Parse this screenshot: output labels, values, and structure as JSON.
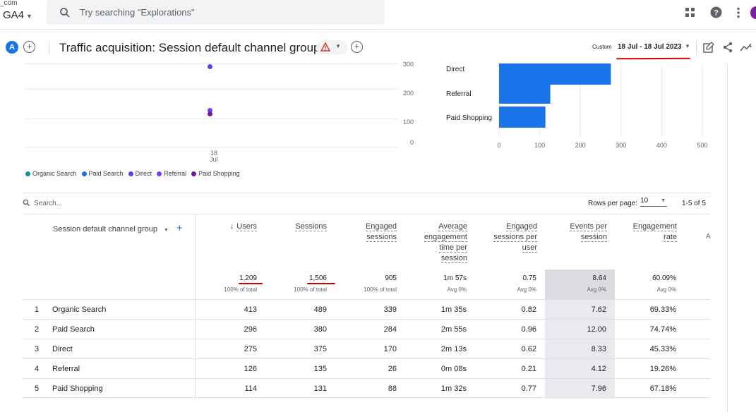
{
  "topbar": {
    "account": "_com",
    "property": "GA4",
    "search_placeholder": "Try searching \"Explorations\"",
    "icons": [
      "apps-icon",
      "help-icon",
      "more-vert-icon"
    ]
  },
  "header": {
    "badge": "A",
    "title": "Traffic acquisition: Session default channel group",
    "custom_label": "Custom",
    "date_range": "18 Jul - 18 Jul 2023"
  },
  "line_chart": {
    "y_ticks": [
      "300",
      "200",
      "100",
      "0"
    ],
    "x_tick_day": "18",
    "x_tick_month": "Jul",
    "legend": [
      {
        "name": "Organic Search",
        "color": "#12939a"
      },
      {
        "name": "Paid Search",
        "color": "#1a73e8"
      },
      {
        "name": "Direct",
        "color": "#4f46e5"
      },
      {
        "name": "Referral",
        "color": "#7c3aed"
      },
      {
        "name": "Paid Shopping",
        "color": "#6a1b9a"
      }
    ]
  },
  "chart_data": {
    "type": "bar",
    "categories": [
      "Direct",
      "Referral",
      "Paid Shopping"
    ],
    "values": [
      275,
      126,
      114
    ],
    "x_ticks": [
      "0",
      "100",
      "200",
      "300",
      "400",
      "500"
    ],
    "xlim": [
      0,
      500
    ],
    "color": "#1a73e8"
  },
  "table": {
    "search_placeholder": "Search...",
    "rows_per_page_label": "Rows per page:",
    "rows_per_page": "10",
    "pagination": "1-5 of 5",
    "dimension_header": "Session default channel group",
    "columns": [
      {
        "label": "Users",
        "total": "1,209",
        "pct": "100% of total"
      },
      {
        "label": "Sessions",
        "total": "1,506",
        "pct": "100% of total"
      },
      {
        "label": "Engaged sessions",
        "total": "905",
        "pct": "100% of total"
      },
      {
        "label": "Average engagement time per session",
        "total": "1m 57s",
        "pct": "Avg 0%"
      },
      {
        "label": "Engaged sessions per user",
        "total": "0.75",
        "pct": "Avg 0%"
      },
      {
        "label": "Events per session",
        "total": "8.64",
        "pct": "Avg 0%"
      },
      {
        "label": "Engagement rate",
        "total": "60.09%",
        "pct": "Avg 0%"
      }
    ],
    "rows": [
      {
        "idx": "1",
        "name": "Organic Search",
        "vals": [
          "413",
          "489",
          "339",
          "1m 35s",
          "0.82",
          "7.62",
          "69.33%"
        ]
      },
      {
        "idx": "2",
        "name": "Paid Search",
        "vals": [
          "296",
          "380",
          "284",
          "2m 55s",
          "0.96",
          "12.00",
          "74.74%"
        ]
      },
      {
        "idx": "3",
        "name": "Direct",
        "vals": [
          "275",
          "375",
          "170",
          "2m 13s",
          "0.62",
          "8.33",
          "45.33%"
        ]
      },
      {
        "idx": "4",
        "name": "Referral",
        "vals": [
          "126",
          "135",
          "26",
          "0m 08s",
          "0.21",
          "4.12",
          "19.26%"
        ]
      },
      {
        "idx": "5",
        "name": "Paid Shopping",
        "vals": [
          "114",
          "131",
          "88",
          "1m 32s",
          "0.77",
          "7.96",
          "67.18%"
        ]
      }
    ]
  }
}
